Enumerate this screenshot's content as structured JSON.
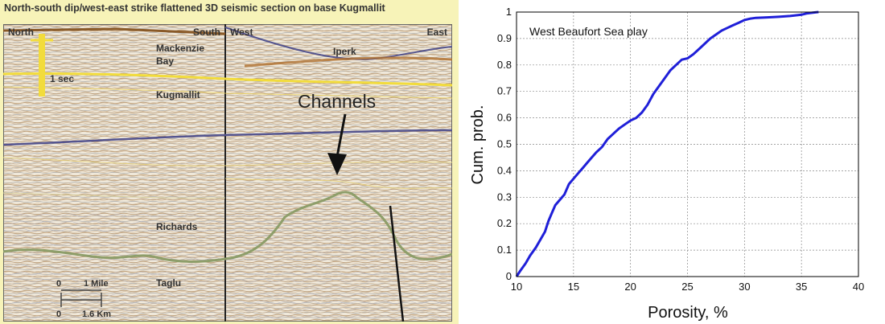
{
  "seismic": {
    "title": "North-south dip/west-east strike flattened 3D seismic section on base Kugmallit",
    "labels": {
      "north": "North",
      "south": "South",
      "west": "West",
      "east": "East",
      "mackenzie": "Mackenzie",
      "bay": "Bay",
      "iperk": "Iperk",
      "one_sec": "1 sec",
      "kugmallit": "Kugmallit",
      "channels": "Channels",
      "richards": "Richards",
      "taglu": "Taglu",
      "scale_zero_top": "0",
      "scale_mile": "1 Mile",
      "scale_zero_bottom": "0",
      "scale_km": "1.6 Km"
    },
    "colors": {
      "horizon_yellow": "#f2dc3c",
      "horizon_blue": "#55558f",
      "horizon_green": "#8e9e6a",
      "fault": "#111111"
    }
  },
  "chart_data": {
    "type": "line",
    "title": "",
    "annotation": "West Beaufort Sea play",
    "xlabel": "Porosity, %",
    "ylabel": "Cum. prob.",
    "xlim": [
      10,
      40
    ],
    "ylim": [
      0,
      1
    ],
    "xticks": [
      10,
      15,
      20,
      25,
      30,
      35,
      40
    ],
    "yticks": [
      0,
      0.1,
      0.2,
      0.3,
      0.4,
      0.5,
      0.6,
      0.7,
      0.8,
      0.9,
      1
    ],
    "ytick_labels": [
      "0",
      "0.1",
      "0.2",
      "0.3",
      "0.4",
      "0.5",
      "0.6",
      "0.7",
      "0.8",
      "0.9",
      "1"
    ],
    "grid": true,
    "series_color": "#1f1fd8",
    "series": [
      {
        "x": [
          10.0,
          10.3,
          10.8,
          11.2,
          11.7,
          12.1,
          12.5,
          12.8,
          13.1,
          13.4,
          13.8,
          14.2,
          14.6,
          15.0,
          15.4,
          15.8,
          16.2,
          16.6,
          17.0,
          17.5,
          18.0,
          18.5,
          19.0,
          19.5,
          20.0,
          20.5,
          21.0,
          21.5,
          22.0,
          22.5,
          23.0,
          23.5,
          24.0,
          24.5,
          25.0,
          25.5,
          26.0,
          26.5,
          27.0,
          27.5,
          28.0,
          28.5,
          29.0,
          29.5,
          30.0,
          30.5,
          31.0,
          32.0,
          33.0,
          34.0,
          35.0,
          35.5,
          36.0,
          36.5
        ],
        "y": [
          0.0,
          0.02,
          0.05,
          0.08,
          0.11,
          0.14,
          0.17,
          0.21,
          0.24,
          0.27,
          0.29,
          0.31,
          0.35,
          0.37,
          0.39,
          0.41,
          0.43,
          0.45,
          0.47,
          0.49,
          0.52,
          0.54,
          0.56,
          0.575,
          0.59,
          0.6,
          0.62,
          0.65,
          0.69,
          0.72,
          0.75,
          0.78,
          0.8,
          0.82,
          0.825,
          0.84,
          0.86,
          0.88,
          0.9,
          0.915,
          0.93,
          0.94,
          0.95,
          0.96,
          0.97,
          0.975,
          0.978,
          0.98,
          0.982,
          0.985,
          0.99,
          0.995,
          0.998,
          1.0
        ]
      }
    ]
  }
}
